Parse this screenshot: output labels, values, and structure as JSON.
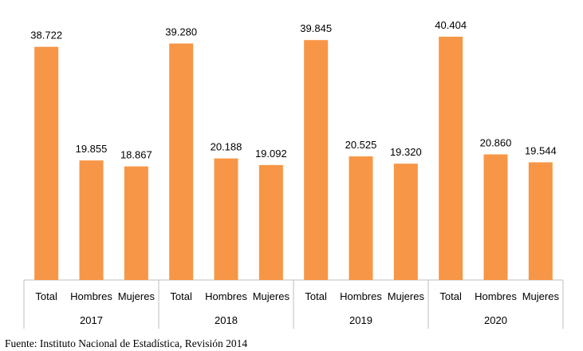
{
  "chart_data": {
    "type": "bar",
    "bar_color": "#F79646",
    "groups": [
      {
        "label": "2017",
        "categories": [
          "Total",
          "Hombres",
          "Mujeres"
        ],
        "values": [
          38722,
          19855,
          18867
        ],
        "value_labels": [
          "38.722",
          "19.855",
          "18.867"
        ]
      },
      {
        "label": "2018",
        "categories": [
          "Total",
          "Hombres",
          "Mujeres"
        ],
        "values": [
          39280,
          20188,
          19092
        ],
        "value_labels": [
          "39.280",
          "20.188",
          "19.092"
        ]
      },
      {
        "label": "2019",
        "categories": [
          "Total",
          "Hombres",
          "Mujeres"
        ],
        "values": [
          39845,
          20525,
          19320
        ],
        "value_labels": [
          "39.845",
          "20.525",
          "19.320"
        ]
      },
      {
        "label": "2020",
        "categories": [
          "Total",
          "Hombres",
          "Mujeres"
        ],
        "values": [
          40404,
          20860,
          19544
        ],
        "value_labels": [
          "40.404",
          "20.860",
          "19.544"
        ]
      }
    ],
    "ylim": [
      0,
      40404
    ],
    "grid": false,
    "legend": "none"
  },
  "source": "Fuente: Instituto Nacional de Estadística, Revisión 2014"
}
